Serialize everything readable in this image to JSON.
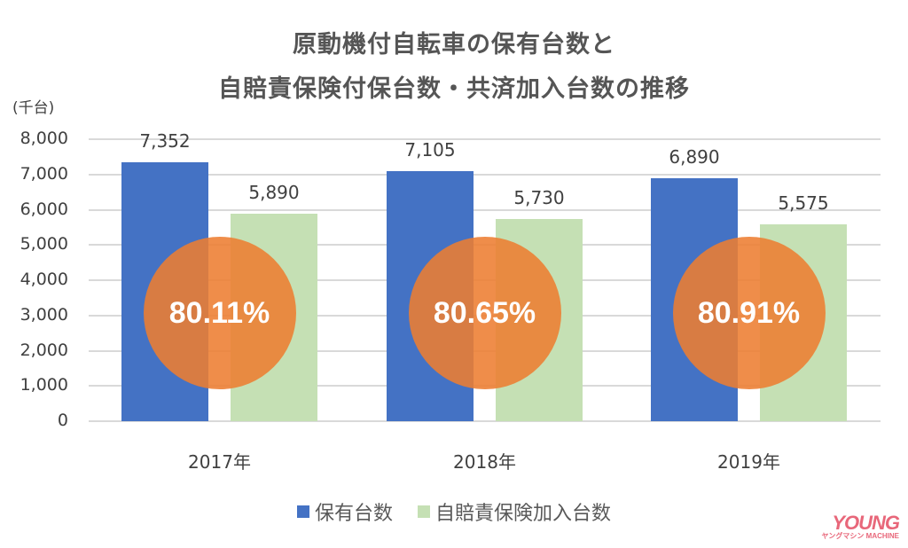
{
  "chart_data": {
    "type": "bar",
    "title": "原動機付自転車の保有台数と",
    "subtitle": "自賠責保険付保台数・共済加入台数の推移",
    "ylabel": "(千台)",
    "xlabel": "",
    "ylim": [
      0,
      8000
    ],
    "yticks": [
      "8,000",
      "7,000",
      "6,000",
      "5,000",
      "4,000",
      "3,000",
      "2,000",
      "1,000",
      "0"
    ],
    "grid": true,
    "legend_position": "bottom",
    "categories": [
      "2017年",
      "2018年",
      "2019年"
    ],
    "series": [
      {
        "name": "保有台数",
        "color": "#4472c4",
        "values": [
          7352,
          7105,
          6890
        ],
        "labels": [
          "7,352",
          "7,105",
          "6,890"
        ]
      },
      {
        "name": "自賠責保険加入台数",
        "color": "#c5e0b4",
        "values": [
          5890,
          5730,
          5575
        ],
        "labels": [
          "5,890",
          "5,730",
          "5,575"
        ]
      }
    ],
    "annotations": [
      {
        "category": "2017年",
        "text": "80.11%",
        "shape": "circle",
        "color": "#ed7d31"
      },
      {
        "category": "2018年",
        "text": "80.65%",
        "shape": "circle",
        "color": "#ed7d31"
      },
      {
        "category": "2019年",
        "text": "80.91%",
        "shape": "circle",
        "color": "#ed7d31"
      }
    ]
  },
  "legend": {
    "items": [
      {
        "label": "保有台数",
        "color": "#4472c4"
      },
      {
        "label": "自賠責保険加入台数",
        "color": "#c5e0b4"
      }
    ]
  },
  "watermark": {
    "main": "YOUNG",
    "sub": "ヤングマシン MACHINE",
    "color": "#e8677a"
  }
}
